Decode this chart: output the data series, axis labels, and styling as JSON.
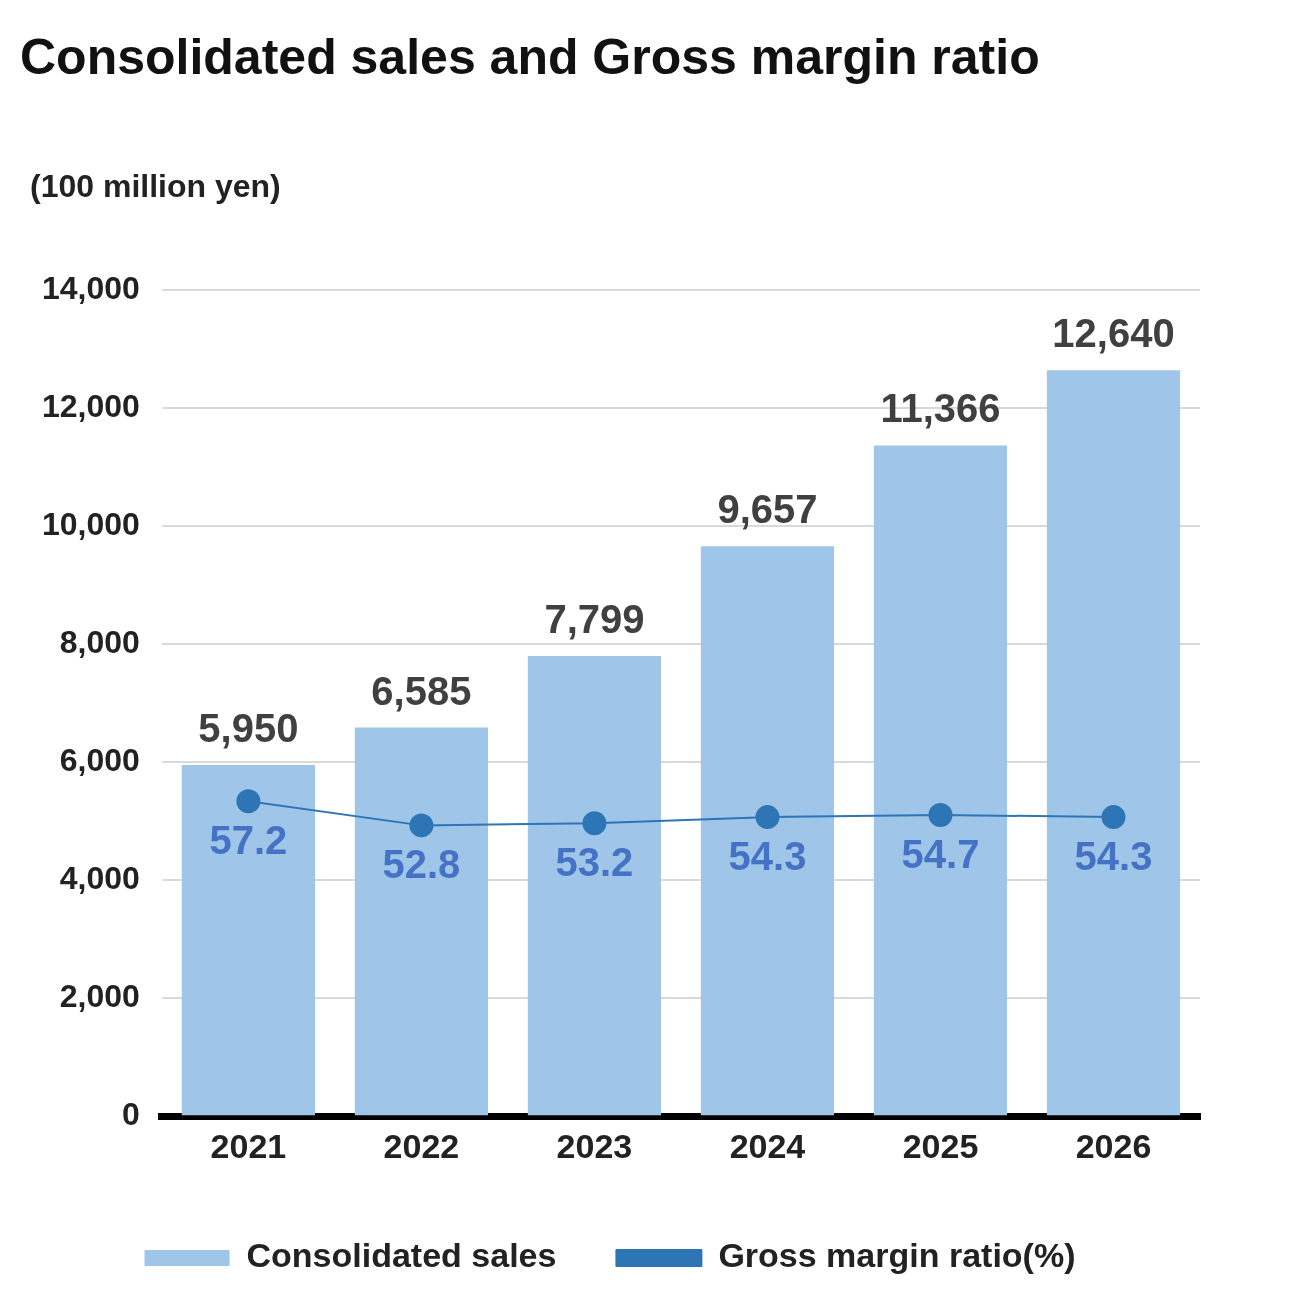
{
  "chart_data": {
    "type": "bar",
    "title": "Consolidated sales and Gross margin ratio",
    "ylabel": "(100 million yen)",
    "categories": [
      "2021",
      "2022",
      "2023",
      "2024",
      "2025",
      "2026"
    ],
    "series": [
      {
        "name": "Consolidated sales",
        "color": "#9fc5e8",
        "values": [
          5950,
          6585,
          7799,
          9657,
          11366,
          12640
        ],
        "value_labels": [
          "5,950",
          "6,585",
          "7,799",
          "9,657",
          "11,366",
          "12,640"
        ]
      },
      {
        "name": "Gross margin ratio(%)",
        "type": "line",
        "axis": "y2",
        "color": "#2e75b6",
        "marker": "circle",
        "values": [
          57.2,
          52.8,
          53.2,
          54.3,
          54.7,
          54.3
        ],
        "value_labels": [
          "57.2",
          "52.8",
          "53.2",
          "54.3",
          "54.7",
          "54.3"
        ]
      }
    ],
    "ylim": [
      0,
      14000
    ],
    "yticks": [
      {
        "value": 0,
        "label": "0"
      },
      {
        "value": 2000,
        "label": "2,000"
      },
      {
        "value": 4000,
        "label": "4,000"
      },
      {
        "value": 6000,
        "label": "6,000"
      },
      {
        "value": 8000,
        "label": "8,000"
      },
      {
        "value": 10000,
        "label": "10,000"
      },
      {
        "value": 12000,
        "label": "12,000"
      },
      {
        "value": 14000,
        "label": "14,000"
      }
    ],
    "y2lim": [
      0,
      150
    ],
    "tick_labels": "xy",
    "grid": "y",
    "legend": "bottom"
  }
}
